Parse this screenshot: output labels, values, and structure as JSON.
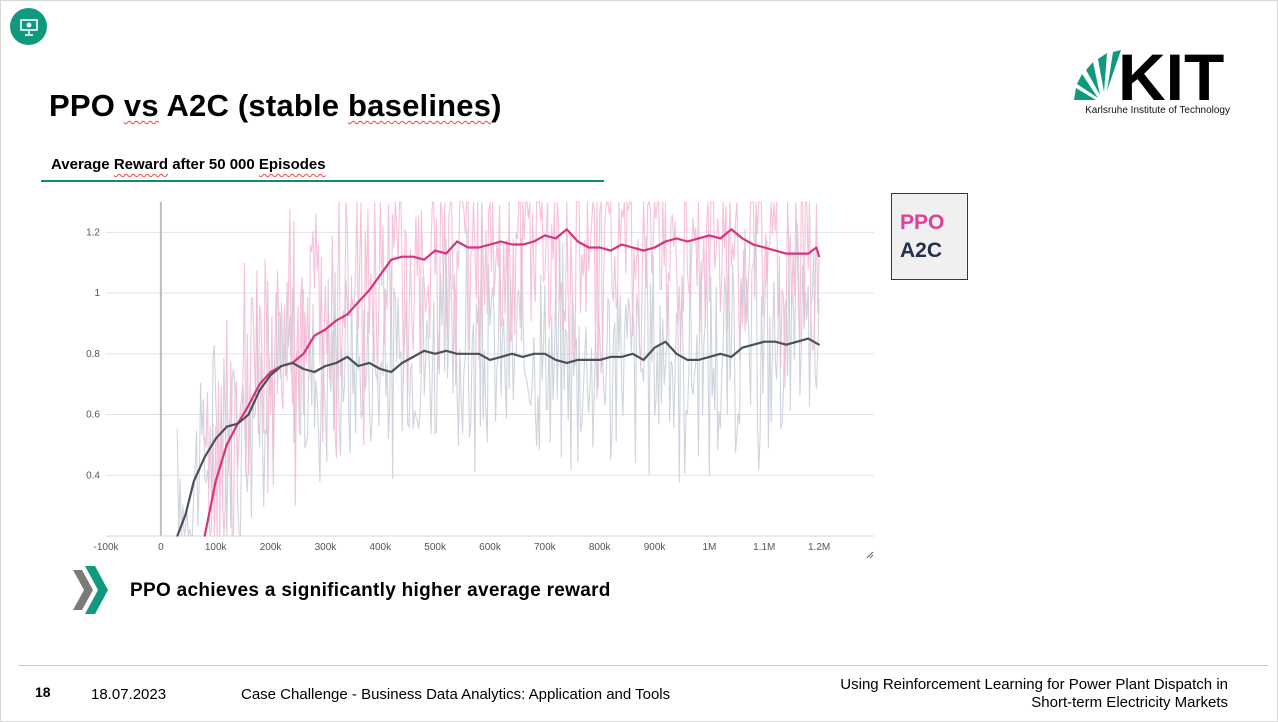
{
  "slide": {
    "title_part1": "PPO",
    "title_part2": "vs",
    "title_part3": "A2C (stable",
    "title_part4": "baselines",
    "title_part5": ")",
    "subtitle_part1": "Average",
    "subtitle_part2": "Reward",
    "subtitle_part3": "after 50 000",
    "subtitle_part4": "Episodes",
    "bullet": "PPO achieves a significantly higher average reward",
    "accent_color": "#0f9a7f"
  },
  "logo": {
    "text": "KIT",
    "subtitle": "Karlsruhe Institute of Technology"
  },
  "legend": {
    "ppo": "PPO",
    "a2c": "A2C"
  },
  "footer": {
    "page_number": "18",
    "date": "18.07.2023",
    "course": "Case Challenge - Business Data Analytics: Application and Tools",
    "topic_line1": "Using Reinforcement Learning for Power Plant Dispatch in",
    "topic_line2": "Short-term Electricity Markets"
  },
  "chart_data": {
    "type": "line",
    "xlim": [
      -100000,
      1300000
    ],
    "ylim": [
      0.2,
      1.3
    ],
    "x_ticks": [
      -100000,
      0,
      100000,
      200000,
      300000,
      400000,
      500000,
      600000,
      700000,
      800000,
      900000,
      1000000,
      1100000,
      1200000,
      1300000
    ],
    "x_tick_labels": [
      "-100k",
      "0",
      "100k",
      "200k",
      "300k",
      "400k",
      "500k",
      "600k",
      "700k",
      "800k",
      "900k",
      "1M",
      "1.1M",
      "1.2M",
      ""
    ],
    "y_ticks": [
      0.4,
      0.6,
      0.8,
      1.0,
      1.2
    ],
    "y_tick_labels": [
      "0.4",
      "0.6",
      "0.8",
      "1",
      "1.2"
    ],
    "grid": true,
    "series": [
      {
        "name": "PPO",
        "color": "#d6337f",
        "raw_color": "#f4b6d4",
        "x": [
          80000,
          100000,
          120000,
          140000,
          160000,
          180000,
          200000,
          220000,
          240000,
          260000,
          280000,
          300000,
          320000,
          340000,
          360000,
          380000,
          400000,
          420000,
          440000,
          460000,
          480000,
          500000,
          520000,
          540000,
          560000,
          580000,
          600000,
          620000,
          640000,
          660000,
          680000,
          700000,
          720000,
          740000,
          760000,
          780000,
          800000,
          820000,
          840000,
          860000,
          880000,
          900000,
          920000,
          940000,
          960000,
          980000,
          1000000,
          1020000,
          1040000,
          1060000,
          1080000,
          1100000,
          1120000,
          1140000,
          1160000,
          1180000,
          1195000,
          1200000
        ],
        "y": [
          0.2,
          0.38,
          0.5,
          0.57,
          0.63,
          0.7,
          0.74,
          0.76,
          0.77,
          0.8,
          0.86,
          0.88,
          0.91,
          0.93,
          0.97,
          1.01,
          1.06,
          1.11,
          1.12,
          1.12,
          1.11,
          1.14,
          1.13,
          1.17,
          1.15,
          1.15,
          1.16,
          1.17,
          1.16,
          1.16,
          1.17,
          1.19,
          1.18,
          1.21,
          1.17,
          1.15,
          1.15,
          1.14,
          1.16,
          1.15,
          1.14,
          1.15,
          1.17,
          1.18,
          1.17,
          1.18,
          1.19,
          1.18,
          1.21,
          1.18,
          1.16,
          1.15,
          1.14,
          1.13,
          1.13,
          1.13,
          1.15,
          1.12
        ]
      },
      {
        "name": "A2C",
        "color": "#4a505c",
        "raw_color": "#c7ccd6",
        "x": [
          30000,
          45000,
          60000,
          80000,
          100000,
          120000,
          140000,
          160000,
          180000,
          200000,
          220000,
          240000,
          260000,
          280000,
          300000,
          320000,
          340000,
          360000,
          380000,
          400000,
          420000,
          440000,
          460000,
          480000,
          500000,
          520000,
          540000,
          560000,
          580000,
          600000,
          620000,
          640000,
          660000,
          680000,
          700000,
          720000,
          740000,
          760000,
          780000,
          800000,
          820000,
          840000,
          860000,
          880000,
          900000,
          920000,
          940000,
          960000,
          980000,
          1000000,
          1020000,
          1040000,
          1060000,
          1080000,
          1100000,
          1120000,
          1140000,
          1160000,
          1180000,
          1200000
        ],
        "y": [
          0.2,
          0.27,
          0.38,
          0.46,
          0.52,
          0.56,
          0.57,
          0.6,
          0.68,
          0.73,
          0.76,
          0.77,
          0.75,
          0.74,
          0.76,
          0.77,
          0.79,
          0.76,
          0.77,
          0.75,
          0.74,
          0.77,
          0.79,
          0.81,
          0.8,
          0.81,
          0.8,
          0.8,
          0.8,
          0.78,
          0.79,
          0.8,
          0.79,
          0.8,
          0.8,
          0.78,
          0.77,
          0.78,
          0.78,
          0.78,
          0.79,
          0.79,
          0.8,
          0.78,
          0.82,
          0.84,
          0.8,
          0.78,
          0.78,
          0.79,
          0.8,
          0.79,
          0.82,
          0.83,
          0.84,
          0.84,
          0.83,
          0.84,
          0.85,
          0.83
        ]
      }
    ]
  }
}
